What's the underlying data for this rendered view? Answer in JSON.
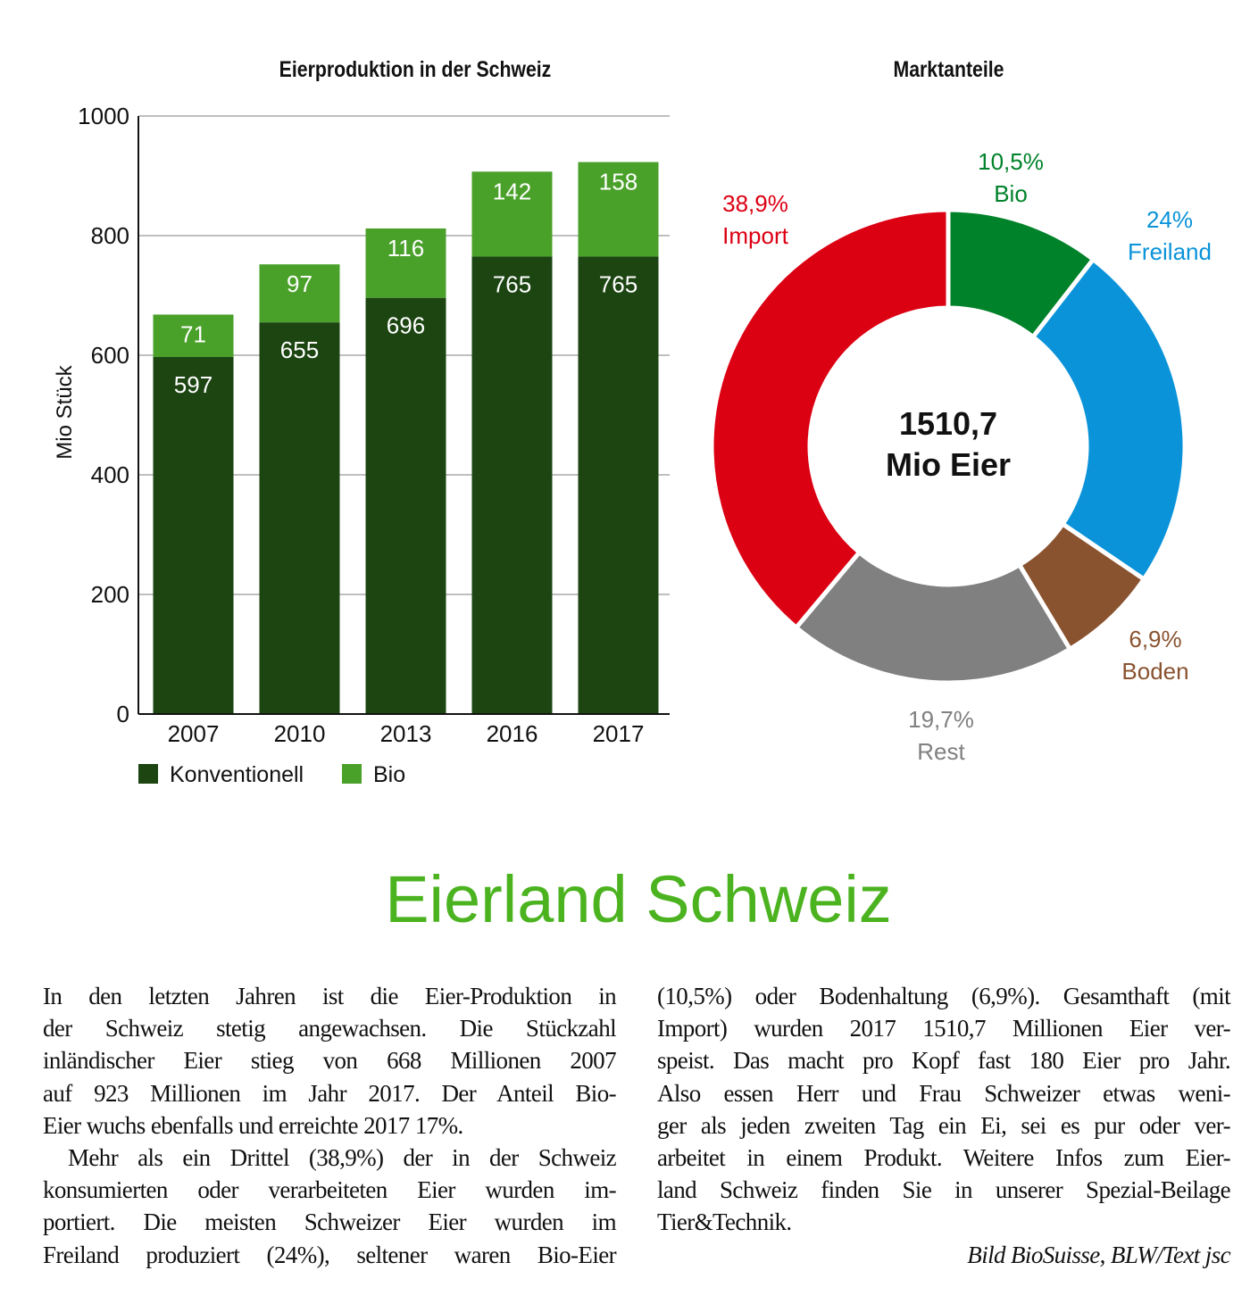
{
  "chart_data": [
    {
      "type": "bar",
      "stacked": true,
      "title": "Eierproduktion in der Schweiz",
      "xlabel": "",
      "ylabel": "Mio Stück",
      "ylim": [
        0,
        1000
      ],
      "yticks": [
        "0",
        "200",
        "400",
        "600",
        "800",
        "1000"
      ],
      "grid": true,
      "legend": "bottom",
      "categories": [
        "2007",
        "2010",
        "2013",
        "2016",
        "2017"
      ],
      "series": [
        {
          "name": "Konventionell",
          "color": "#1c4512",
          "values": [
            597,
            655,
            696,
            765,
            765
          ]
        },
        {
          "name": "Bio",
          "color": "#4aa12a",
          "values": [
            71,
            97,
            116,
            142,
            158
          ]
        }
      ]
    },
    {
      "type": "pie",
      "donut": true,
      "title": "Marktanteile",
      "center_label": [
        "1510,7",
        "Mio Eier"
      ],
      "slices": [
        {
          "name": "Bio",
          "value": 10.5,
          "label": "10,5%",
          "color": "#00822a"
        },
        {
          "name": "Freiland",
          "value": 24,
          "label": "24%",
          "color": "#0a93d9"
        },
        {
          "name": "Boden",
          "value": 6.9,
          "label": "6,9%",
          "color": "#8a5330"
        },
        {
          "name": "Rest",
          "value": 19.7,
          "label": "19,7%",
          "color": "#808080"
        },
        {
          "name": "Import",
          "value": 38.9,
          "label": "38,9%",
          "color": "#dc0013"
        }
      ]
    }
  ],
  "article": {
    "headline": "Eierland Schweiz",
    "left_lines": [
      "In den letzten Jahren ist die Eier-Produktion in",
      "der Schweiz stetig angewachsen. Die Stückzahl",
      "inländischer Eier stieg von 668 Millionen 2007",
      "auf 923 Millionen im Jahr 2017. Der Anteil Bio-",
      "Eier wuchs ebenfalls und erreichte 2017 17%.",
      "Mehr als ein Drittel (38,9%) der in der Schweiz",
      "konsumierten oder verarbeiteten Eier wurden im-",
      "portiert. Die meisten Schweizer Eier wurden im",
      "Freiland produziert (24%), seltener waren Bio-Eier"
    ],
    "right_lines": [
      "(10,5%) oder Bodenhaltung (6,9%). Gesamthaft (mit",
      "Import) wurden 2017 1510,7 Millionen Eier ver-",
      "speist. Das macht pro Kopf fast 180 Eier pro Jahr.",
      "Also essen Herr und Frau Schweizer etwas weni-",
      "ger als jeden zweiten Tag ein Ei, sei es pur oder ver-",
      "arbeitet in einem Produkt. Weitere Infos zum Eier-",
      "land Schweiz finden Sie in unserer Spezial-Beilage",
      "Tier&Technik."
    ],
    "credit": "Bild BioSuisse, BLW/Text jsc"
  }
}
